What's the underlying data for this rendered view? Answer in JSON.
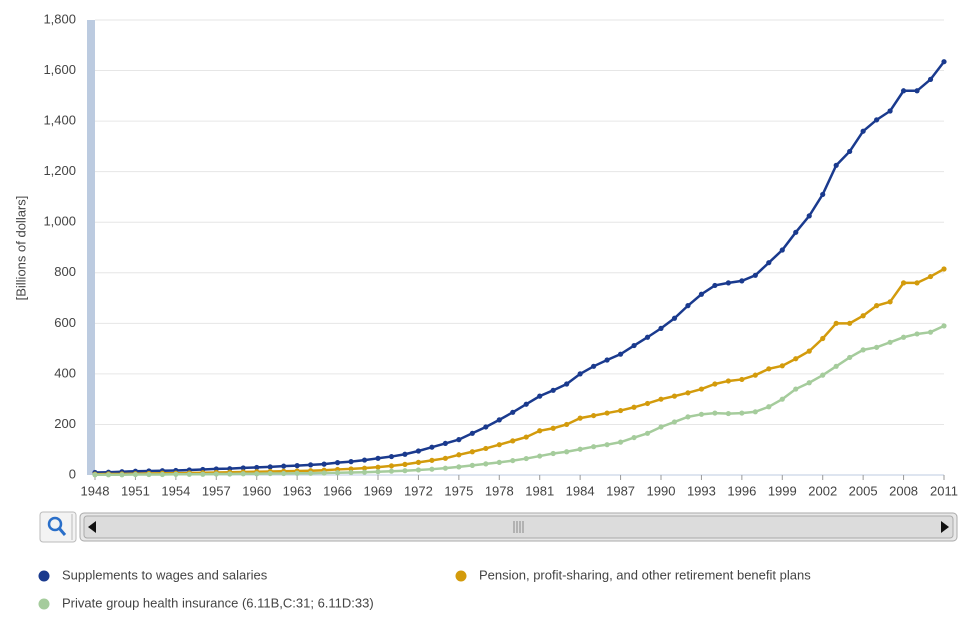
{
  "chart_data": {
    "type": "line",
    "x": [
      1948,
      1949,
      1950,
      1951,
      1952,
      1953,
      1954,
      1955,
      1956,
      1957,
      1958,
      1959,
      1960,
      1961,
      1962,
      1963,
      1964,
      1965,
      1966,
      1967,
      1968,
      1969,
      1970,
      1971,
      1972,
      1973,
      1974,
      1975,
      1976,
      1977,
      1978,
      1979,
      1980,
      1981,
      1982,
      1983,
      1984,
      1985,
      1986,
      1987,
      1988,
      1989,
      1990,
      1991,
      1992,
      1993,
      1994,
      1995,
      1996,
      1997,
      1998,
      1999,
      2000,
      2001,
      2002,
      2003,
      2004,
      2005,
      2006,
      2007,
      2008,
      2009,
      2010,
      2011
    ],
    "series": [
      {
        "name": "Supplements to wages and salaries",
        "color": "#1a3a8e",
        "values": [
          10,
          11,
          13,
          15,
          16,
          17,
          18,
          20,
          22,
          24,
          25,
          28,
          30,
          32,
          35,
          37,
          40,
          43,
          49,
          53,
          59,
          66,
          73,
          82,
          95,
          110,
          125,
          140,
          165,
          190,
          218,
          248,
          280,
          312,
          335,
          360,
          400,
          430,
          455,
          478,
          512,
          545,
          580,
          620,
          670,
          715,
          750,
          760,
          768,
          790,
          840,
          890,
          960,
          1025,
          1110,
          1225,
          1280,
          1360,
          1405,
          1440,
          1520,
          1520,
          1565,
          1635
        ]
      },
      {
        "name": "Pension, profit-sharing, and other retirement benefit plans",
        "color": "#d39b0c",
        "values": [
          3,
          4,
          4,
          5,
          6,
          7,
          7,
          8,
          9,
          10,
          11,
          12,
          13,
          14,
          15,
          16,
          17,
          19,
          22,
          24,
          27,
          31,
          36,
          42,
          50,
          58,
          66,
          80,
          92,
          105,
          120,
          135,
          150,
          175,
          185,
          200,
          225,
          235,
          245,
          255,
          268,
          283,
          300,
          312,
          325,
          340,
          360,
          372,
          378,
          395,
          420,
          432,
          460,
          490,
          540,
          600,
          600,
          630,
          670,
          685,
          760,
          760,
          785,
          815
        ]
      },
      {
        "name": "Private group health insurance (6.11B,C:31; 6.11D:33)",
        "color": "#a5cc9c",
        "values": [
          1,
          1,
          1,
          2,
          2,
          2,
          3,
          3,
          3,
          4,
          4,
          5,
          5,
          6,
          6,
          7,
          7,
          8,
          9,
          10,
          11,
          13,
          15,
          17,
          20,
          23,
          27,
          32,
          38,
          44,
          50,
          57,
          65,
          75,
          85,
          92,
          102,
          112,
          120,
          130,
          148,
          165,
          190,
          210,
          230,
          240,
          245,
          243,
          245,
          250,
          270,
          300,
          340,
          365,
          395,
          430,
          465,
          495,
          505,
          525,
          545,
          558,
          565,
          590
        ]
      }
    ],
    "y_label": "[Billions of dollars]",
    "xlim": [
      1948,
      2011
    ],
    "xticks": [
      1948,
      1951,
      1954,
      1957,
      1960,
      1963,
      1966,
      1969,
      1972,
      1975,
      1978,
      1981,
      1984,
      1987,
      1990,
      1993,
      1996,
      1999,
      2002,
      2005,
      2008,
      2011
    ],
    "ylim": [
      0,
      1800
    ],
    "yticks": [
      0,
      200,
      400,
      600,
      800,
      {
        "value": 1000,
        "label": "1,000"
      },
      {
        "value": 1200,
        "label": "1,200"
      },
      {
        "value": 1400,
        "label": "1,400"
      },
      {
        "value": 1600,
        "label": "1,600"
      },
      {
        "value": 1800,
        "label": "1,800"
      }
    ],
    "grid": true
  }
}
